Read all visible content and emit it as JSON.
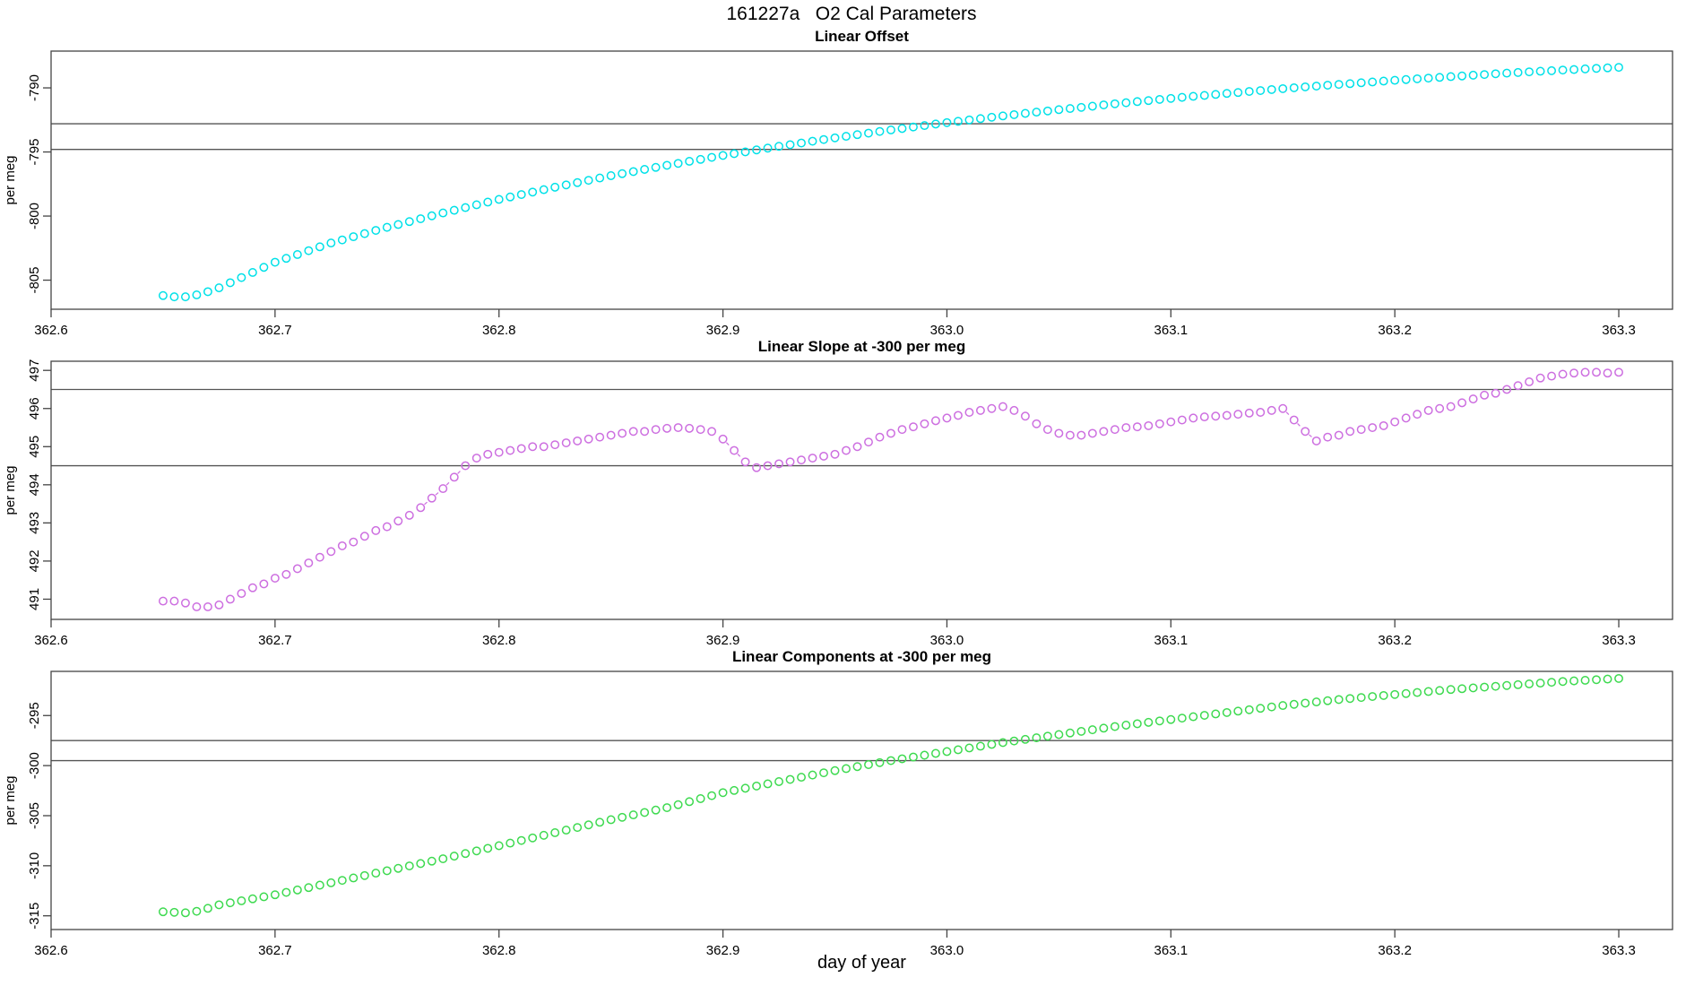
{
  "title": "161227a   O2 Cal Parameters",
  "xlabel": "day of year",
  "chart_data": {
    "type": "scatter",
    "marker": "open-circle",
    "point_interval_days": 0.005,
    "xlim": [
      362.6,
      363.324
    ],
    "x_ticks": [
      {
        "v": 362.6,
        "label": "362.6"
      },
      {
        "v": 362.7,
        "label": "362.7"
      },
      {
        "v": 362.8,
        "label": "362.8"
      },
      {
        "v": 362.9,
        "label": "362.9"
      },
      {
        "v": 363.0,
        "label": "363.0"
      },
      {
        "v": 363.1,
        "label": "363.1"
      },
      {
        "v": 363.2,
        "label": "363.2"
      },
      {
        "v": 363.3,
        "label": "363.3"
      }
    ],
    "x_days": [
      362.65,
      362.655,
      362.66,
      362.665,
      362.67,
      362.675,
      362.68,
      362.685,
      362.69,
      362.695,
      362.7,
      362.705,
      362.71,
      362.715,
      362.72,
      362.725,
      362.73,
      362.735,
      362.74,
      362.745,
      362.75,
      362.755,
      362.76,
      362.765,
      362.77,
      362.775,
      362.78,
      362.785,
      362.79,
      362.795,
      362.8,
      362.805,
      362.81,
      362.815,
      362.82,
      362.825,
      362.83,
      362.835,
      362.84,
      362.845,
      362.85,
      362.855,
      362.86,
      362.865,
      362.87,
      362.875,
      362.88,
      362.885,
      362.89,
      362.895,
      362.9,
      362.905,
      362.91,
      362.915,
      362.92,
      362.925,
      362.93,
      362.935,
      362.94,
      362.945,
      362.95,
      362.955,
      362.96,
      362.965,
      362.97,
      362.975,
      362.98,
      362.985,
      362.99,
      362.995,
      363.0,
      363.005,
      363.01,
      363.015,
      363.02,
      363.025,
      363.03,
      363.035,
      363.04,
      363.045,
      363.05,
      363.055,
      363.06,
      363.065,
      363.07,
      363.075,
      363.08,
      363.085,
      363.09,
      363.095,
      363.1,
      363.105,
      363.11,
      363.115,
      363.12,
      363.125,
      363.13,
      363.135,
      363.14,
      363.145,
      363.15,
      363.155,
      363.16,
      363.165,
      363.17,
      363.175,
      363.18,
      363.185,
      363.19,
      363.195,
      363.2,
      363.205,
      363.21,
      363.215,
      363.22,
      363.225,
      363.23,
      363.235,
      363.24,
      363.245,
      363.25,
      363.255,
      363.26,
      363.265,
      363.27,
      363.275,
      363.28,
      363.285,
      363.29,
      363.295,
      363.3
    ],
    "panels": [
      {
        "title": "Linear Offset",
        "ylabel": "per meg",
        "color": "#00e1e8",
        "ylim": [
          -807.27,
          -787.13
        ],
        "y_ticks": [
          {
            "v": -790,
            "label": "-790"
          },
          {
            "v": -795,
            "label": "-795"
          },
          {
            "v": -800,
            "label": "-800"
          },
          {
            "v": -805,
            "label": "-805"
          }
        ],
        "ref_lines": [
          -792.8,
          -794.8
        ],
        "values": [
          -806.2,
          -806.3,
          -806.3,
          -806.15,
          -805.9,
          -805.6,
          -805.2,
          -804.8,
          -804.4,
          -804.0,
          -803.6,
          -803.3,
          -803.0,
          -802.7,
          -802.4,
          -802.1,
          -801.86,
          -801.61,
          -801.37,
          -801.12,
          -800.88,
          -800.66,
          -800.43,
          -800.21,
          -799.98,
          -799.76,
          -799.55,
          -799.34,
          -799.12,
          -798.91,
          -798.7,
          -798.51,
          -798.32,
          -798.13,
          -797.94,
          -797.75,
          -797.57,
          -797.39,
          -797.21,
          -797.03,
          -796.85,
          -796.69,
          -796.53,
          -796.36,
          -796.2,
          -796.04,
          -795.89,
          -795.73,
          -795.58,
          -795.42,
          -795.27,
          -795.13,
          -794.99,
          -794.84,
          -794.7,
          -794.56,
          -794.43,
          -794.3,
          -794.16,
          -794.03,
          -793.9,
          -793.78,
          -793.65,
          -793.53,
          -793.4,
          -793.28,
          -793.17,
          -793.05,
          -792.94,
          -792.82,
          -792.71,
          -792.61,
          -792.5,
          -792.4,
          -792.29,
          -792.19,
          -792.09,
          -791.99,
          -791.89,
          -791.8,
          -791.7,
          -791.61,
          -791.52,
          -791.43,
          -791.33,
          -791.24,
          -791.16,
          -791.07,
          -790.99,
          -790.9,
          -790.82,
          -790.74,
          -790.66,
          -790.59,
          -790.51,
          -790.43,
          -790.36,
          -790.28,
          -790.21,
          -790.13,
          -790.06,
          -789.99,
          -789.92,
          -789.86,
          -789.79,
          -789.73,
          -789.67,
          -789.6,
          -789.54,
          -789.47,
          -789.41,
          -789.35,
          -789.29,
          -789.24,
          -789.18,
          -789.12,
          -789.07,
          -789.01,
          -788.96,
          -788.9,
          -788.85,
          -788.8,
          -788.75,
          -788.7,
          -788.66,
          -788.61,
          -788.57,
          -788.52,
          -788.48,
          -788.44,
          -788.4
        ]
      },
      {
        "title": "Linear Slope at -300 per meg",
        "ylabel": "per meg",
        "color": "#cd6fe0",
        "ylim": [
          490.47,
          497.24
        ],
        "y_ticks": [
          {
            "v": 497,
            "label": "497"
          },
          {
            "v": 496,
            "label": "496"
          },
          {
            "v": 495,
            "label": "495"
          },
          {
            "v": 494,
            "label": "494"
          },
          {
            "v": 493,
            "label": "493"
          },
          {
            "v": 492,
            "label": "492"
          },
          {
            "v": 491,
            "label": "491"
          }
        ],
        "ref_lines": [
          496.5,
          494.5
        ],
        "values": [
          490.95,
          490.95,
          490.9,
          490.8,
          490.8,
          490.85,
          491.0,
          491.15,
          491.3,
          491.4,
          491.55,
          491.65,
          491.8,
          491.95,
          492.1,
          492.25,
          492.4,
          492.5,
          492.65,
          492.8,
          492.9,
          493.05,
          493.2,
          493.4,
          493.65,
          493.9,
          494.2,
          494.5,
          494.7,
          494.8,
          494.85,
          494.9,
          494.95,
          495.0,
          495.0,
          495.05,
          495.1,
          495.15,
          495.2,
          495.25,
          495.3,
          495.35,
          495.4,
          495.4,
          495.45,
          495.48,
          495.5,
          495.48,
          495.45,
          495.4,
          495.2,
          494.9,
          494.6,
          494.45,
          494.5,
          494.55,
          494.6,
          494.65,
          494.7,
          494.75,
          494.8,
          494.9,
          495.0,
          495.12,
          495.25,
          495.35,
          495.45,
          495.52,
          495.6,
          495.68,
          495.75,
          495.82,
          495.9,
          495.95,
          496.0,
          496.05,
          495.95,
          495.8,
          495.6,
          495.45,
          495.35,
          495.3,
          495.3,
          495.35,
          495.4,
          495.45,
          495.5,
          495.52,
          495.55,
          495.6,
          495.65,
          495.7,
          495.75,
          495.78,
          495.8,
          495.82,
          495.85,
          495.88,
          495.9,
          495.95,
          496.0,
          495.7,
          495.4,
          495.15,
          495.25,
          495.3,
          495.4,
          495.45,
          495.5,
          495.55,
          495.65,
          495.75,
          495.85,
          495.95,
          496.0,
          496.05,
          496.15,
          496.25,
          496.35,
          496.4,
          496.5,
          496.6,
          496.7,
          496.8,
          496.85,
          496.9,
          496.93,
          496.95,
          496.95,
          496.93,
          496.95
        ]
      },
      {
        "title": "Linear Components at -300 per meg",
        "ylabel": "per meg",
        "color": "#3eda50",
        "ylim": [
          -316.37,
          -290.59
        ],
        "y_ticks": [
          {
            "v": -295,
            "label": "-295"
          },
          {
            "v": -300,
            "label": "-300"
          },
          {
            "v": -305,
            "label": "-305"
          },
          {
            "v": -310,
            "label": "-310"
          },
          {
            "v": -315,
            "label": "-315"
          }
        ],
        "ref_lines": [
          -297.5,
          -299.5
        ],
        "values": [
          -314.6,
          -314.65,
          -314.7,
          -314.55,
          -314.25,
          -313.9,
          -313.7,
          -313.5,
          -313.3,
          -313.1,
          -312.9,
          -312.66,
          -312.42,
          -312.18,
          -311.94,
          -311.7,
          -311.46,
          -311.22,
          -310.98,
          -310.74,
          -310.5,
          -310.26,
          -310.02,
          -309.78,
          -309.54,
          -309.3,
          -309.04,
          -308.78,
          -308.52,
          -308.26,
          -308.0,
          -307.74,
          -307.48,
          -307.22,
          -306.96,
          -306.7,
          -306.44,
          -306.18,
          -305.92,
          -305.66,
          -305.4,
          -305.16,
          -304.92,
          -304.68,
          -304.44,
          -304.2,
          -303.9,
          -303.6,
          -303.3,
          -303.0,
          -302.7,
          -302.48,
          -302.26,
          -302.04,
          -301.82,
          -301.6,
          -301.38,
          -301.16,
          -300.94,
          -300.72,
          -300.5,
          -300.3,
          -300.1,
          -299.9,
          -299.7,
          -299.5,
          -299.32,
          -299.14,
          -298.96,
          -298.78,
          -298.6,
          -298.42,
          -298.24,
          -298.06,
          -297.88,
          -297.7,
          -297.54,
          -297.38,
          -297.22,
          -297.06,
          -296.9,
          -296.74,
          -296.58,
          -296.42,
          -296.26,
          -296.1,
          -295.96,
          -295.82,
          -295.68,
          -295.54,
          -295.4,
          -295.26,
          -295.12,
          -294.98,
          -294.84,
          -294.7,
          -294.56,
          -294.42,
          -294.28,
          -294.14,
          -294.0,
          -293.88,
          -293.76,
          -293.64,
          -293.52,
          -293.4,
          -293.3,
          -293.2,
          -293.1,
          -293.0,
          -292.9,
          -292.8,
          -292.7,
          -292.6,
          -292.5,
          -292.4,
          -292.32,
          -292.24,
          -292.16,
          -292.08,
          -292.0,
          -291.92,
          -291.84,
          -291.76,
          -291.68,
          -291.6,
          -291.54,
          -291.48,
          -291.42,
          -291.36,
          -291.3
        ]
      }
    ]
  },
  "style": {
    "axis_color": "#444444",
    "ref_line_color": "#555555"
  }
}
